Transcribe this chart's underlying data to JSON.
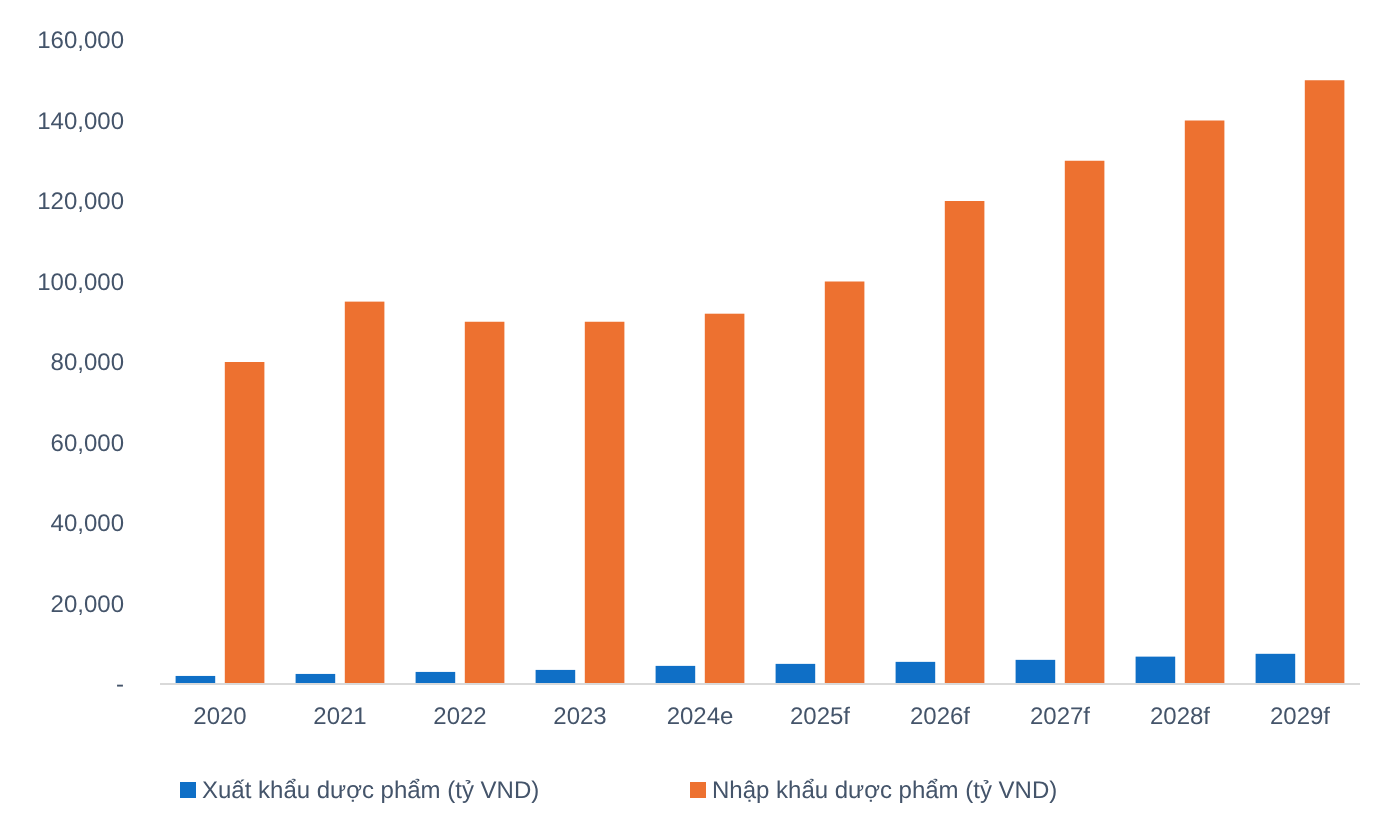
{
  "chart_data": {
    "type": "bar",
    "categories": [
      "2020",
      "2021",
      "2022",
      "2023",
      "2024e",
      "2025f",
      "2026f",
      "2027f",
      "2028f",
      "2029f"
    ],
    "series": [
      {
        "name": "Xuất khẩu dược phẩm (tỷ VND)",
        "color": "#0f6fc6",
        "values": [
          2000,
          2500,
          3000,
          3500,
          4500,
          5000,
          5500,
          6000,
          6800,
          7500
        ]
      },
      {
        "name": "Nhập khẩu dược phẩm (tỷ VND)",
        "color": "#ed7130",
        "values": [
          80000,
          95000,
          90000,
          90000,
          92000,
          100000,
          120000,
          130000,
          140000,
          150000
        ]
      }
    ],
    "ylim": [
      0,
      160000
    ],
    "yticks": [
      {
        "value": 0,
        "label": "-"
      },
      {
        "value": 20000,
        "label": "20,000"
      },
      {
        "value": 40000,
        "label": "40,000"
      },
      {
        "value": 60000,
        "label": "60,000"
      },
      {
        "value": 80000,
        "label": "80,000"
      },
      {
        "value": 100000,
        "label": "100,000"
      },
      {
        "value": 120000,
        "label": "120,000"
      },
      {
        "value": 140000,
        "label": "140,000"
      },
      {
        "value": 160000,
        "label": "160,000"
      }
    ],
    "grid": false,
    "legend": "bottom"
  }
}
